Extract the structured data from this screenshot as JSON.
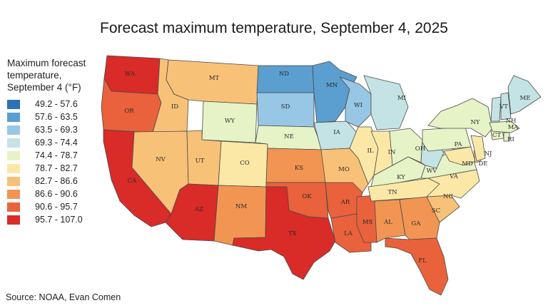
{
  "title": "Forecast maximum temperature, September 4, 2025",
  "legend": {
    "title_lines": [
      "Maximum forecast",
      "temperature,",
      "September 4 (°F)"
    ],
    "bins": [
      {
        "label": "49.2 - 57.6",
        "color": "#2b72b6"
      },
      {
        "label": "57.6 - 63.5",
        "color": "#5b9ed0"
      },
      {
        "label": "63.5 - 69.3",
        "color": "#97c7e4"
      },
      {
        "label": "69.3 - 74.4",
        "color": "#c4e3e5"
      },
      {
        "label": "74.4 - 78.7",
        "color": "#e6f3c6"
      },
      {
        "label": "78.7 - 82.7",
        "color": "#fbe8a6"
      },
      {
        "label": "82.7 - 86.6",
        "color": "#f8c178"
      },
      {
        "label": "86.6 - 90.6",
        "color": "#f29552"
      },
      {
        "label": "90.6 - 95.7",
        "color": "#e9623b"
      },
      {
        "label": "95.7 - 107.0",
        "color": "#d92b27"
      }
    ]
  },
  "source": "Source: NOAA, Evan Comen",
  "map": {
    "states": [
      {
        "abbr": "WA",
        "bin": 9
      },
      {
        "abbr": "OR",
        "bin": 8
      },
      {
        "abbr": "CA",
        "bin": 9
      },
      {
        "abbr": "ID",
        "bin": 6
      },
      {
        "abbr": "NV",
        "bin": 6
      },
      {
        "abbr": "MT",
        "bin": 6
      },
      {
        "abbr": "WY",
        "bin": 4
      },
      {
        "abbr": "UT",
        "bin": 6
      },
      {
        "abbr": "CO",
        "bin": 5
      },
      {
        "abbr": "AZ",
        "bin": 9
      },
      {
        "abbr": "NM",
        "bin": 7
      },
      {
        "abbr": "ND",
        "bin": 1
      },
      {
        "abbr": "SD",
        "bin": 2
      },
      {
        "abbr": "NE",
        "bin": 4
      },
      {
        "abbr": "KS",
        "bin": 7
      },
      {
        "abbr": "OK",
        "bin": 8
      },
      {
        "abbr": "TX",
        "bin": 9
      },
      {
        "abbr": "MN",
        "bin": 1
      },
      {
        "abbr": "IA",
        "bin": 3
      },
      {
        "abbr": "MO",
        "bin": 6
      },
      {
        "abbr": "AR",
        "bin": 8
      },
      {
        "abbr": "LA",
        "bin": 8
      },
      {
        "abbr": "WI",
        "bin": 2
      },
      {
        "abbr": "IL",
        "bin": 5
      },
      {
        "abbr": "MS",
        "bin": 8
      },
      {
        "abbr": "MI",
        "bin": 3
      },
      {
        "abbr": "IN",
        "bin": 5
      },
      {
        "abbr": "KY",
        "bin": 4
      },
      {
        "abbr": "TN",
        "bin": 5
      },
      {
        "abbr": "AL",
        "bin": 7
      },
      {
        "abbr": "OH",
        "bin": 4
      },
      {
        "abbr": "GA",
        "bin": 7
      },
      {
        "abbr": "FL",
        "bin": 8
      },
      {
        "abbr": "SC",
        "bin": 6
      },
      {
        "abbr": "NC",
        "bin": 5
      },
      {
        "abbr": "VA",
        "bin": 4
      },
      {
        "abbr": "WV",
        "bin": 3
      },
      {
        "abbr": "PA",
        "bin": 4
      },
      {
        "abbr": "NY",
        "bin": 4
      },
      {
        "abbr": "MD",
        "bin": 5
      },
      {
        "abbr": "DE",
        "bin": 5
      },
      {
        "abbr": "NJ",
        "bin": 5
      },
      {
        "abbr": "CT",
        "bin": 4
      },
      {
        "abbr": "RI",
        "bin": 4
      },
      {
        "abbr": "MA",
        "bin": 4
      },
      {
        "abbr": "VT",
        "bin": 3
      },
      {
        "abbr": "NH",
        "bin": 3
      },
      {
        "abbr": "ME",
        "bin": 3
      }
    ]
  }
}
